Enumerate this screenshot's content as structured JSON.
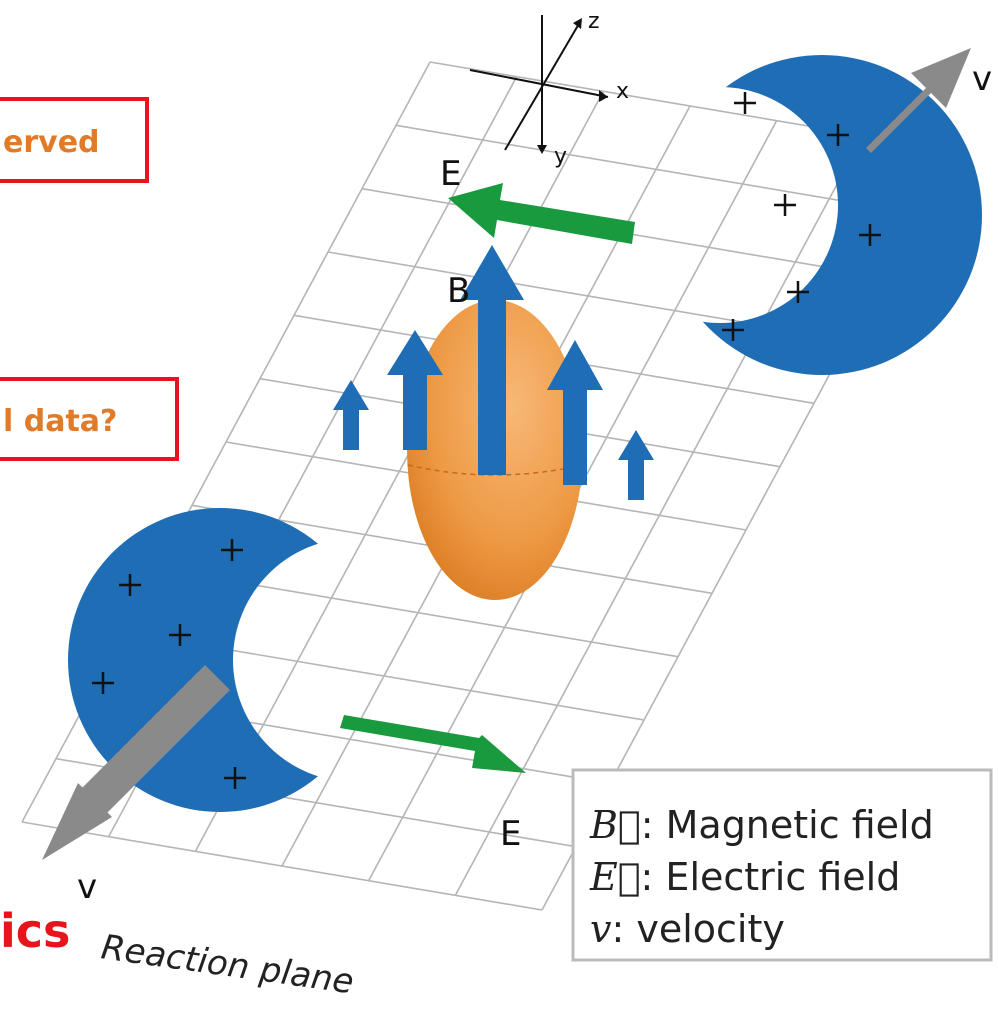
{
  "callouts": [
    "erved",
    "l data?"
  ],
  "heading": "ics",
  "plane_label": "Reaction plane",
  "axes": {
    "x": "x",
    "y": "y",
    "z": "z"
  },
  "labels": {
    "v_top": "v",
    "v_bottom": "v",
    "E_top": "E",
    "E_bottom": "E",
    "B": "B"
  },
  "legend": [
    {
      "symbol": "B⃗",
      "text": ": Magnetic field"
    },
    {
      "symbol": "E⃗",
      "text": ": Electric field"
    },
    {
      "symbol": "v",
      "text": ": velocity"
    }
  ]
}
